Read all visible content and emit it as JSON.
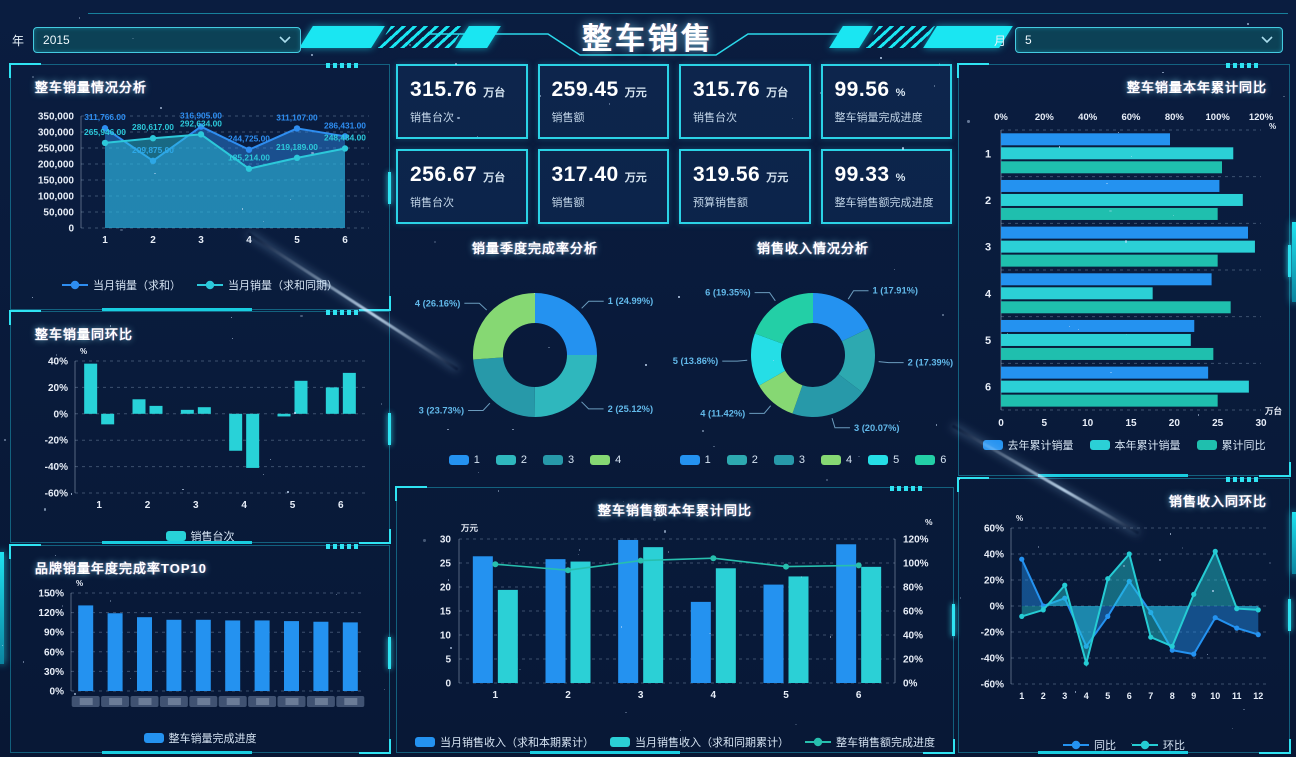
{
  "header": {
    "title": "整车销售",
    "year_label": "年",
    "year_value": "2015",
    "month_label": "月",
    "month_value": "5"
  },
  "colors": {
    "background": "#0a1c3c",
    "accent_cyan": "#22d6e8",
    "bar_blue": "#2492f0",
    "bar_cyan": "#28d2d8",
    "line_teal": "#27bfae",
    "green": "#86d873",
    "bright_cyan": "#25dee6"
  },
  "kpi_cards": [
    {
      "value": "315.76",
      "unit": "万台",
      "label": "销售台次"
    },
    {
      "value": "259.45",
      "unit": "万元",
      "label": "销售额"
    },
    {
      "value": "315.76",
      "unit": "万台",
      "label": "销售台次"
    },
    {
      "value": "99.56",
      "unit": "%",
      "label": "整车销量完成进度"
    },
    {
      "value": "256.67",
      "unit": "万台",
      "label": "销售台次"
    },
    {
      "value": "317.40",
      "unit": "万元",
      "label": "销售额"
    },
    {
      "value": "319.56",
      "unit": "万元",
      "label": "预算销售额"
    },
    {
      "value": "99.33",
      "unit": "%",
      "label": "整车销售额完成进度"
    }
  ],
  "chart_data": [
    {
      "id": "volume-analysis",
      "type": "area",
      "title": "整车销量情况分析",
      "categories": [
        "1",
        "2",
        "3",
        "4",
        "5",
        "6"
      ],
      "ylim": [
        0,
        350000
      ],
      "ytick_step": 50000,
      "grid": true,
      "legend_position": "bottom",
      "series": [
        {
          "name": "当月销量（求和）",
          "color": "#2e8df0",
          "values": [
            311766,
            209875,
            316905,
            244725,
            311107,
            286431
          ],
          "labels": [
            "311,766.00",
            "209,875.00",
            "316,905.00",
            "244,725.00",
            "311,107.00",
            "286,431.00"
          ]
        },
        {
          "name": "当月销量（求和同期）",
          "color": "#2cc8da",
          "values": [
            265946,
            280617,
            292634,
            185214,
            219189,
            248484
          ],
          "labels": [
            "265,946.00",
            "280,617.00",
            "292,634.00",
            "185,214.00",
            "219,189.00",
            "248,484.00"
          ]
        }
      ],
      "legend": [
        {
          "label": "当月销量（求和）",
          "color": "#2e8df0",
          "type": "linedot"
        },
        {
          "label": "当月销量（求和同期）",
          "color": "#2cc8da",
          "type": "linedot"
        }
      ]
    },
    {
      "id": "volume-yoy-mom",
      "type": "bar",
      "title": "整车销量同环比",
      "unit": "%",
      "categories": [
        "1",
        "2",
        "3",
        "4",
        "5",
        "6"
      ],
      "ylim": [
        -60,
        40
      ],
      "ytick_step": 20,
      "series": [
        {
          "name": "销售台次",
          "color": "#28d2d8",
          "values": [
            38,
            11,
            3,
            -28,
            -2,
            20
          ]
        },
        {
          "name": "销售台次",
          "color": "#28d2d8",
          "values": [
            -8,
            6,
            5,
            -41,
            25,
            31
          ]
        }
      ],
      "legend": [
        {
          "label": "销售台次",
          "color": "#28d2d8",
          "type": "rect"
        }
      ]
    },
    {
      "id": "brand-top10",
      "type": "bar",
      "title": "品牌销量年度完成率TOP10",
      "unit": "%",
      "values": [
        131,
        119,
        113,
        109,
        109,
        108,
        108,
        107,
        106,
        105
      ],
      "ylim": [
        0,
        150
      ],
      "ytick_step": 30,
      "categories_censored": true,
      "legend": [
        {
          "label": "整车销量完成进度",
          "color": "#2492f0",
          "type": "rect"
        }
      ]
    },
    {
      "id": "quarter-completion",
      "type": "pie",
      "title": "销量季度完成率分析",
      "slices": [
        {
          "name": "1",
          "pct": 24.99,
          "label": "1 (24.99%)",
          "color": "#2492f0"
        },
        {
          "name": "2",
          "pct": 25.12,
          "label": "2 (25.12%)",
          "color": "#2fb7bd"
        },
        {
          "name": "3",
          "pct": 23.73,
          "label": "3 (23.73%)",
          "color": "#2799a9"
        },
        {
          "name": "4",
          "pct": 26.16,
          "label": "4 (26.16%)",
          "color": "#86d873"
        }
      ],
      "legend": [
        {
          "label": "1",
          "color": "#2492f0",
          "type": "rect"
        },
        {
          "label": "2",
          "color": "#2fb7bd",
          "type": "rect"
        },
        {
          "label": "3",
          "color": "#2799a9",
          "type": "rect"
        },
        {
          "label": "4",
          "color": "#86d873",
          "type": "rect"
        }
      ]
    },
    {
      "id": "revenue-analysis",
      "type": "pie",
      "title": "销售收入情况分析",
      "slices": [
        {
          "name": "1",
          "pct": 17.91,
          "label": "1 (17.91%)",
          "color": "#2492f0"
        },
        {
          "name": "2",
          "pct": 17.39,
          "label": "2 (17.39%)",
          "color": "#2da9b0"
        },
        {
          "name": "3",
          "pct": 20.07,
          "label": "3 (20.07%)",
          "color": "#2799a9"
        },
        {
          "name": "4",
          "pct": 11.42,
          "label": "4 (11.42%)",
          "color": "#86d873"
        },
        {
          "name": "5",
          "pct": 13.86,
          "label": "5 (13.86%)",
          "color": "#25dee6"
        },
        {
          "name": "6",
          "pct": 19.35,
          "label": "6 (19.35%)",
          "color": "#23cfa6"
        }
      ],
      "legend": [
        {
          "label": "1",
          "color": "#2492f0",
          "type": "rect"
        },
        {
          "label": "2",
          "color": "#2da9b0",
          "type": "rect"
        },
        {
          "label": "3",
          "color": "#2799a9",
          "type": "rect"
        },
        {
          "label": "4",
          "color": "#86d873",
          "type": "rect"
        },
        {
          "label": "5",
          "color": "#25dee6",
          "type": "rect"
        },
        {
          "label": "6",
          "color": "#23cfa6",
          "type": "rect"
        }
      ]
    },
    {
      "id": "revenue-ytd",
      "type": "bar+line",
      "title": "整车销售额本年累计同比",
      "categories": [
        "1",
        "2",
        "3",
        "4",
        "5",
        "6"
      ],
      "y1": {
        "unit": "万元",
        "min": 0,
        "max": 30,
        "step": 5
      },
      "y2": {
        "unit": "%",
        "min": 0,
        "max": 120,
        "step": 20
      },
      "bar_series": [
        {
          "name": "当月销售收入（求和本期累计）",
          "color": "#2492f0",
          "values": [
            26.4,
            25.8,
            29.8,
            16.9,
            20.5,
            28.9
          ]
        },
        {
          "name": "当月销售收入（求和同期累计）",
          "color": "#2bd0d6",
          "values": [
            19.4,
            25.3,
            28.3,
            23.9,
            22.2,
            24.2
          ]
        }
      ],
      "line_series": {
        "name": "整车销售额完成进度",
        "color": "#27bfae",
        "values": [
          99,
          94,
          102,
          104,
          97,
          98
        ]
      },
      "legend": [
        {
          "label": "当月销售收入（求和本期累计）",
          "color": "#2492f0",
          "type": "rect"
        },
        {
          "label": "当月销售收入（求和同期累计）",
          "color": "#2bd0d6",
          "type": "rect"
        },
        {
          "label": "整车销售额完成进度",
          "color": "#27bfae",
          "type": "linedot"
        }
      ]
    },
    {
      "id": "volume-ytd",
      "type": "hbar",
      "title": "整车销量本年累计同比",
      "categories": [
        "1",
        "2",
        "3",
        "4",
        "5",
        "6"
      ],
      "axis_percent": {
        "unit": "%",
        "min": 0,
        "max": 120,
        "step": 20,
        "position": "top"
      },
      "axis_volume": {
        "unit": "万台",
        "min": 0,
        "max": 30,
        "step": 5,
        "position": "bottom"
      },
      "series": [
        {
          "name": "去年累计销量",
          "color": "#2492f0",
          "axis": "volume",
          "values": [
            19.5,
            25.2,
            28.5,
            24.3,
            22.3,
            23.9
          ]
        },
        {
          "name": "本年累计销量",
          "color": "#2bd0d6",
          "axis": "volume",
          "values": [
            26.8,
            27.9,
            29.3,
            17.5,
            21.9,
            28.6
          ]
        },
        {
          "name": "累计同比",
          "color": "#1fbfae",
          "axis": "percent",
          "values": [
            102,
            100,
            100,
            106,
            98,
            100
          ]
        }
      ],
      "legend": [
        {
          "label": "去年累计销量",
          "color": "#2492f0",
          "type": "rect"
        },
        {
          "label": "本年累计销量",
          "color": "#2bd0d6",
          "type": "rect"
        },
        {
          "label": "累计同比",
          "color": "#1fbfae",
          "type": "rect"
        }
      ]
    },
    {
      "id": "revenue-yoy-mom",
      "type": "area",
      "title": "销售收入同环比",
      "unit": "%",
      "categories": [
        "1",
        "2",
        "3",
        "4",
        "5",
        "6",
        "7",
        "8",
        "9",
        "10",
        "11",
        "12"
      ],
      "ylim": [
        -60,
        60
      ],
      "ytick_step": 20,
      "series": [
        {
          "name": "同比",
          "color": "#2492f0",
          "values": [
            36,
            0,
            6,
            -31,
            -8,
            19,
            -5,
            -34,
            -37,
            -9,
            -17,
            -22
          ]
        },
        {
          "name": "环比",
          "color": "#25ccd4",
          "values": [
            -8,
            -3,
            16,
            -44,
            21,
            40,
            -24,
            -31,
            9,
            42,
            -2,
            -3
          ]
        }
      ],
      "legend": [
        {
          "label": "同比",
          "color": "#2492f0",
          "type": "linedot"
        },
        {
          "label": "环比",
          "color": "#25ccd4",
          "type": "linedot"
        }
      ]
    }
  ]
}
